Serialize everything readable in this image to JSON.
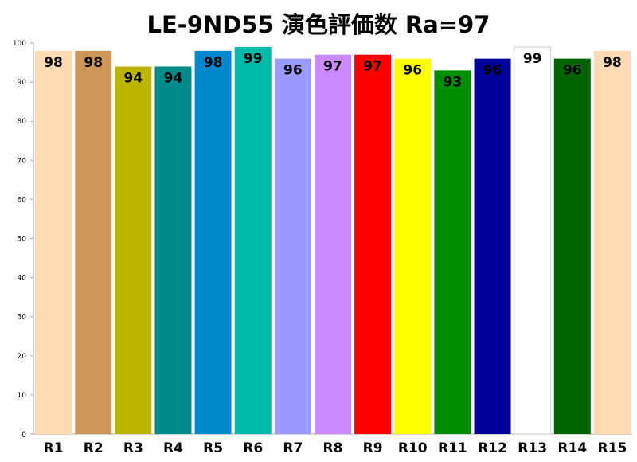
{
  "chart_data": {
    "type": "bar",
    "title": "LE-9ND55  演色評価数    Ra=97",
    "xlabel": "",
    "ylabel": "",
    "ylim": [
      0,
      100
    ],
    "yticks": [
      0,
      10,
      20,
      30,
      40,
      50,
      60,
      70,
      80,
      90,
      100
    ],
    "grid": false,
    "legend": "none",
    "categories": [
      "R1",
      "R2",
      "R3",
      "R4",
      "R5",
      "R6",
      "R7",
      "R8",
      "R9",
      "R10",
      "R11",
      "R12",
      "R13",
      "R14",
      "R15"
    ],
    "values": [
      98,
      98,
      94,
      94,
      98,
      99,
      96,
      97,
      97,
      96,
      93,
      96,
      99,
      96,
      98
    ],
    "bar_colors": [
      "#FFDAB5",
      "#CC9656",
      "#BDB400",
      "#008B8B",
      "#0288CE",
      "#00BBAA",
      "#9999FF",
      "#CC88FF",
      "#FF0000",
      "#FFFF00",
      "#008E00",
      "#000099",
      "#FFFFFF",
      "#006400",
      "#FFDAB5"
    ],
    "label_colors": [
      "#000000",
      "#000000",
      "#000000",
      "#000000",
      "#000000",
      "#000000",
      "#000000",
      "#000000",
      "#000000",
      "#000000",
      "#000000",
      "#000000",
      "#000000",
      "#000000",
      "#000000"
    ],
    "axis_color": "#AAAAAA"
  }
}
